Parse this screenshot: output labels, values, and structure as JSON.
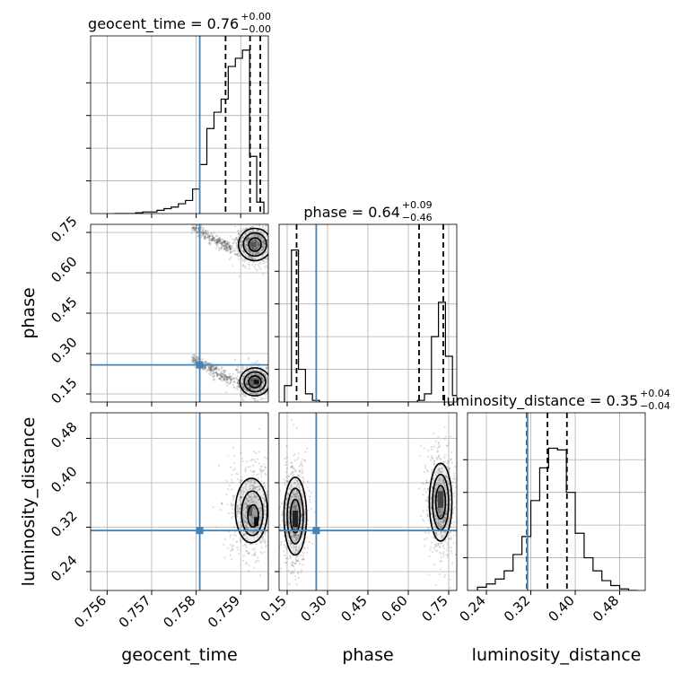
{
  "chart_data": {
    "type": "corner",
    "parameters": [
      "geocent_time",
      "phase",
      "luminosity_distance"
    ],
    "truth_color": "#4682b4",
    "truths": {
      "geocent_time": 0.75808,
      "phase": 0.258,
      "luminosity_distance": 0.314
    },
    "titles": [
      {
        "param": "geocent_time",
        "name": "geocent_time",
        "median": "0.76",
        "plus": "+0.00",
        "minus": "−0.00"
      },
      {
        "param": "phase",
        "name": "phase",
        "median": "0.64",
        "plus": "+0.09",
        "minus": "−0.46"
      },
      {
        "param": "luminosity_distance",
        "name": "luminosity_distance",
        "median": "0.35",
        "plus": "+0.04",
        "minus": "−0.04"
      }
    ],
    "axes": {
      "geocent_time": {
        "range": [
          0.75563,
          0.75962
        ],
        "ticks": [
          0.756,
          0.757,
          0.758,
          0.759
        ],
        "tick_labels": [
          "0.756",
          "0.757",
          "0.758",
          "0.759"
        ],
        "label": "geocent_time"
      },
      "phase": {
        "range": [
          0.12,
          0.78
        ],
        "ticks": [
          0.15,
          0.3,
          0.45,
          0.6,
          0.75
        ],
        "tick_labels": [
          "0.15",
          "0.30",
          "0.45",
          "0.60",
          "0.75"
        ],
        "label": "phase"
      },
      "luminosity_distance": {
        "range": [
          0.206,
          0.526
        ],
        "ticks": [
          0.24,
          0.32,
          0.4,
          0.48
        ],
        "tick_labels": [
          "0.24",
          "0.32",
          "0.40",
          "0.48"
        ],
        "label": "luminosity_distance"
      }
    },
    "marginals": {
      "geocent_time": {
        "edges": [
          0.75616,
          0.75632,
          0.75648,
          0.75664,
          0.7568,
          0.75696,
          0.75712,
          0.75728,
          0.75744,
          0.7576,
          0.75776,
          0.75792,
          0.75808,
          0.75824,
          0.7584,
          0.75856,
          0.75872,
          0.75888,
          0.75904,
          0.7592,
          0.75936,
          0.75952
        ],
        "counts": [
          0.0,
          0.0,
          0.0,
          0.005,
          0.01,
          0.01,
          0.02,
          0.03,
          0.04,
          0.06,
          0.08,
          0.15,
          0.3,
          0.52,
          0.62,
          0.7,
          0.9,
          0.95,
          1.0,
          0.35,
          0.07
        ],
        "quantiles": [
          0.75866,
          0.75921,
          0.75944
        ]
      },
      "phase": {
        "edges": [
          0.14,
          0.166,
          0.192,
          0.218,
          0.244,
          0.27,
          0.296,
          0.322,
          0.348,
          0.374,
          0.4,
          0.426,
          0.452,
          0.478,
          0.504,
          0.53,
          0.556,
          0.582,
          0.608,
          0.634,
          0.66,
          0.686,
          0.712,
          0.738,
          0.764,
          0.79
        ],
        "counts": [
          0.1,
          0.93,
          0.2,
          0.05,
          0.01,
          0.0,
          0.0,
          0.0,
          0.0,
          0.0,
          0.0,
          0.0,
          0.0,
          0.0,
          0.0,
          0.0,
          0.0,
          0.0,
          0.0,
          0.01,
          0.05,
          0.4,
          0.61,
          0.28,
          0.04
        ],
        "quantiles": [
          0.185,
          0.64,
          0.73
        ]
      },
      "luminosity_distance": {
        "edges": [
          0.224,
          0.24,
          0.256,
          0.272,
          0.288,
          0.304,
          0.32,
          0.336,
          0.352,
          0.368,
          0.384,
          0.4,
          0.416,
          0.432,
          0.448,
          0.464,
          0.48,
          0.496,
          0.512
        ],
        "counts": [
          0.02,
          0.04,
          0.07,
          0.12,
          0.22,
          0.33,
          0.55,
          0.75,
          0.87,
          0.86,
          0.6,
          0.35,
          0.2,
          0.12,
          0.06,
          0.03,
          0.01,
          0.0
        ],
        "quantiles": [
          0.313,
          0.35,
          0.385
        ]
      }
    },
    "pairs": [
      {
        "x": "geocent_time",
        "y": "phase",
        "clusters": [
          {
            "center": [
              0.7593,
              0.195
            ],
            "spread": [
              0.00022,
              0.03
            ]
          },
          {
            "center": [
              0.7593,
              0.705
            ],
            "spread": [
              0.00025,
              0.04
            ]
          }
        ],
        "tails": [
          {
            "from": [
              0.7579,
              0.28
            ],
            "to": [
              0.7588,
              0.2
            ]
          },
          {
            "from": [
              0.7579,
              0.77
            ],
            "to": [
              0.7588,
              0.69
            ]
          }
        ],
        "contours": [
          {
            "center": [
              0.75932,
              0.195
            ],
            "radii": [
              0.00014,
              0.022
            ]
          },
          {
            "center": [
              0.75932,
              0.195
            ],
            "radii": [
              0.00024,
              0.037
            ]
          },
          {
            "center": [
              0.75932,
              0.195
            ],
            "radii": [
              0.00034,
              0.052
            ]
          },
          {
            "center": [
              0.75932,
              0.705
            ],
            "radii": [
              0.00014,
              0.025
            ]
          },
          {
            "center": [
              0.75932,
              0.705
            ],
            "radii": [
              0.00026,
              0.043
            ]
          },
          {
            "center": [
              0.75932,
              0.705
            ],
            "radii": [
              0.00037,
              0.06
            ]
          }
        ],
        "dense": [
          {
            "center": [
              0.75935,
              0.195
            ],
            "w": 0.00012,
            "h": 0.016,
            "color": "#111111"
          },
          {
            "center": [
              0.75928,
              0.705
            ],
            "w": 0.00014,
            "h": 0.02,
            "color": "#555555"
          }
        ]
      },
      {
        "x": "geocent_time",
        "y": "luminosity_distance",
        "clusters": [
          {
            "center": [
              0.75925,
              0.35
            ],
            "spread": [
              0.00028,
              0.045
            ]
          }
        ],
        "tails": [],
        "contours": [
          {
            "center": [
              0.75928,
              0.34
            ],
            "radii": [
              0.00012,
              0.02
            ]
          },
          {
            "center": [
              0.75926,
              0.345
            ],
            "radii": [
              0.00024,
              0.04
            ]
          },
          {
            "center": [
              0.75924,
              0.35
            ],
            "radii": [
              0.00036,
              0.058
            ]
          }
        ],
        "dense": [
          {
            "center": [
              0.75935,
              0.33
            ],
            "w": 0.0001,
            "h": 0.016,
            "color": "#111111"
          },
          {
            "center": [
              0.7592,
              0.35
            ],
            "w": 0.00012,
            "h": 0.02,
            "color": "#555555"
          }
        ]
      },
      {
        "x": "phase",
        "y": "luminosity_distance",
        "clusters": [
          {
            "center": [
              0.18,
              0.34
            ],
            "spread": [
              0.025,
              0.05
            ]
          },
          {
            "center": [
              0.72,
              0.36
            ],
            "spread": [
              0.028,
              0.05
            ]
          }
        ],
        "tails": [],
        "contours": [
          {
            "center": [
              0.18,
              0.34
            ],
            "radii": [
              0.018,
              0.03
            ]
          },
          {
            "center": [
              0.18,
              0.34
            ],
            "radii": [
              0.03,
              0.05
            ]
          },
          {
            "center": [
              0.18,
              0.34
            ],
            "radii": [
              0.042,
              0.07
            ]
          },
          {
            "center": [
              0.72,
              0.365
            ],
            "radii": [
              0.018,
              0.03
            ]
          },
          {
            "center": [
              0.72,
              0.365
            ],
            "radii": [
              0.03,
              0.05
            ]
          },
          {
            "center": [
              0.72,
              0.365
            ],
            "radii": [
              0.042,
              0.07
            ]
          }
        ],
        "dense": [
          {
            "center": [
              0.18,
              0.335
            ],
            "w": 0.02,
            "h": 0.03,
            "color": "#222222"
          },
          {
            "center": [
              0.72,
              0.37
            ],
            "w": 0.02,
            "h": 0.03,
            "color": "#444444"
          }
        ]
      }
    ]
  }
}
